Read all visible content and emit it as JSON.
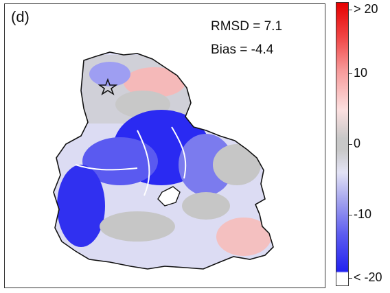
{
  "panel": {
    "label": "(d)"
  },
  "stats": {
    "rmsd": "RMSD = 7.1",
    "bias": "Bias = -4.4"
  },
  "colorbar": {
    "labels": [
      "> 20",
      "10",
      "0",
      "-10",
      "< -20"
    ],
    "colors": {
      "positive": "#e60000",
      "zero": "#c8c8c8",
      "negative": "#2222f0"
    }
  },
  "map": {
    "marker": "star-icon"
  }
}
